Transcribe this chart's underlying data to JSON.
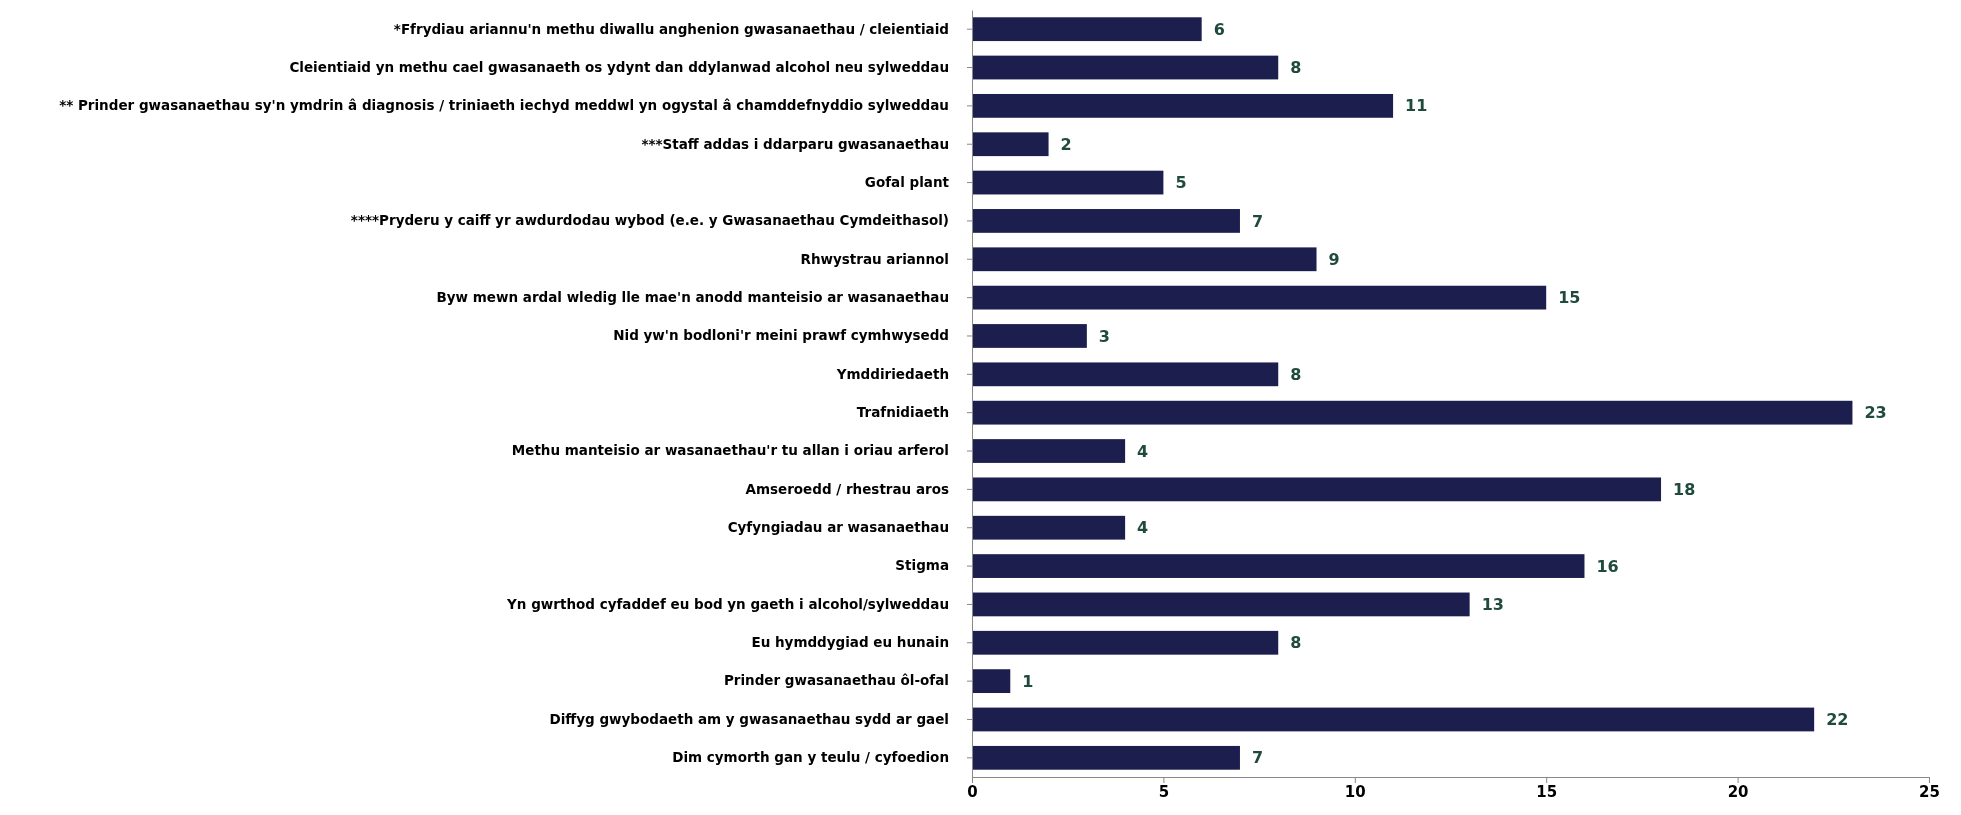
{
  "chart_data": {
    "type": "bar",
    "orientation": "horizontal",
    "categories": [
      "*Ffrydiau ariannu'n methu diwallu anghenion gwasanaethau / cleientiaid",
      "Cleientiaid yn methu cael gwasanaeth os ydynt dan ddylanwad alcohol neu sylweddau",
      "** Prinder gwasanaethau sy'n ymdrin â diagnosis / triniaeth iechyd meddwl yn ogystal â chamddefnyddio sylweddau",
      "***Staff addas i ddarparu gwasanaethau",
      "Gofal plant",
      "****Pryderu y caiff yr awdurdodau wybod (e.e. y Gwasanaethau Cymdeithasol)",
      "Rhwystrau ariannol",
      "Byw mewn ardal wledig lle mae'n anodd manteisio ar wasanaethau",
      "Nid yw'n bodloni'r meini prawf cymhwysedd",
      "Ymddiriedaeth",
      "Trafnidiaeth",
      "Methu manteisio ar wasanaethau'r tu allan i oriau arferol",
      "Amseroedd / rhestrau aros",
      "Cyfyngiadau ar wasanaethau",
      "Stigma",
      "Yn gwrthod cyfaddef eu bod yn gaeth i alcohol/sylweddau",
      "Eu hymddygiad eu hunain",
      "Prinder gwasanaethau ôl-ofal",
      "Diffyg gwybodaeth am y gwasanaethau sydd ar gael",
      "Dim cymorth gan y teulu / cyfoedion"
    ],
    "values": [
      6,
      8,
      11,
      2,
      5,
      7,
      9,
      15,
      3,
      8,
      23,
      4,
      18,
      4,
      16,
      13,
      8,
      1,
      22,
      7
    ],
    "color": "#1c1f4d",
    "data_labels": true,
    "xlim": [
      0,
      25
    ],
    "xticks": [
      0,
      5,
      10,
      15,
      20,
      25
    ],
    "grid": false
  }
}
